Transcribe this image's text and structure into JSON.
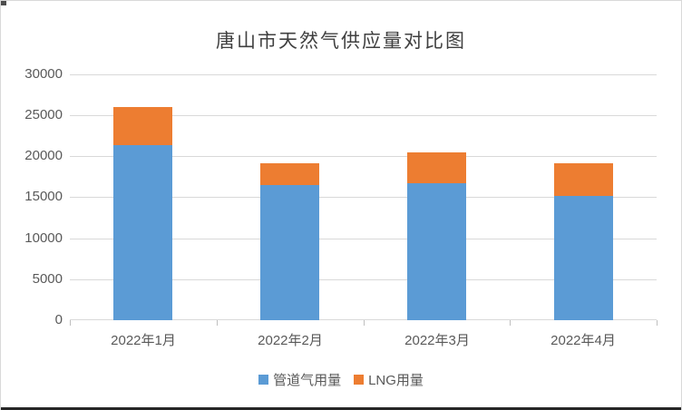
{
  "title": "唐山市天然气供应量对比图",
  "colors": {
    "pipeline_blue": "#5B9BD5",
    "lng_orange": "#ED7D31",
    "gridline": "#d9d9d9",
    "axis_text": "#595959",
    "title_text": "#404040"
  },
  "legend": {
    "items": [
      {
        "label": "管道气用量",
        "color": "#5B9BD5"
      },
      {
        "label": "LNG用量",
        "color": "#ED7D31"
      }
    ]
  },
  "chart_data": {
    "type": "bar",
    "stacked": true,
    "title": "唐山市天然气供应量对比图",
    "categories": [
      "2022年1月",
      "2022年2月",
      "2022年3月",
      "2022年4月"
    ],
    "series": [
      {
        "name": "管道气用量",
        "color": "#5B9BD5",
        "values": [
          21400,
          16500,
          16700,
          15200
        ]
      },
      {
        "name": "LNG用量",
        "color": "#ED7D31",
        "values": [
          4600,
          2700,
          3800,
          4000
        ]
      }
    ],
    "totals": [
      26000,
      19200,
      20500,
      19200
    ],
    "xlabel": "",
    "ylabel": "",
    "ylim": [
      0,
      30000
    ],
    "ytick_step": 5000,
    "yticks": [
      "0",
      "5000",
      "10000",
      "15000",
      "20000",
      "25000",
      "30000"
    ],
    "grid": true,
    "legend_position": "bottom"
  }
}
